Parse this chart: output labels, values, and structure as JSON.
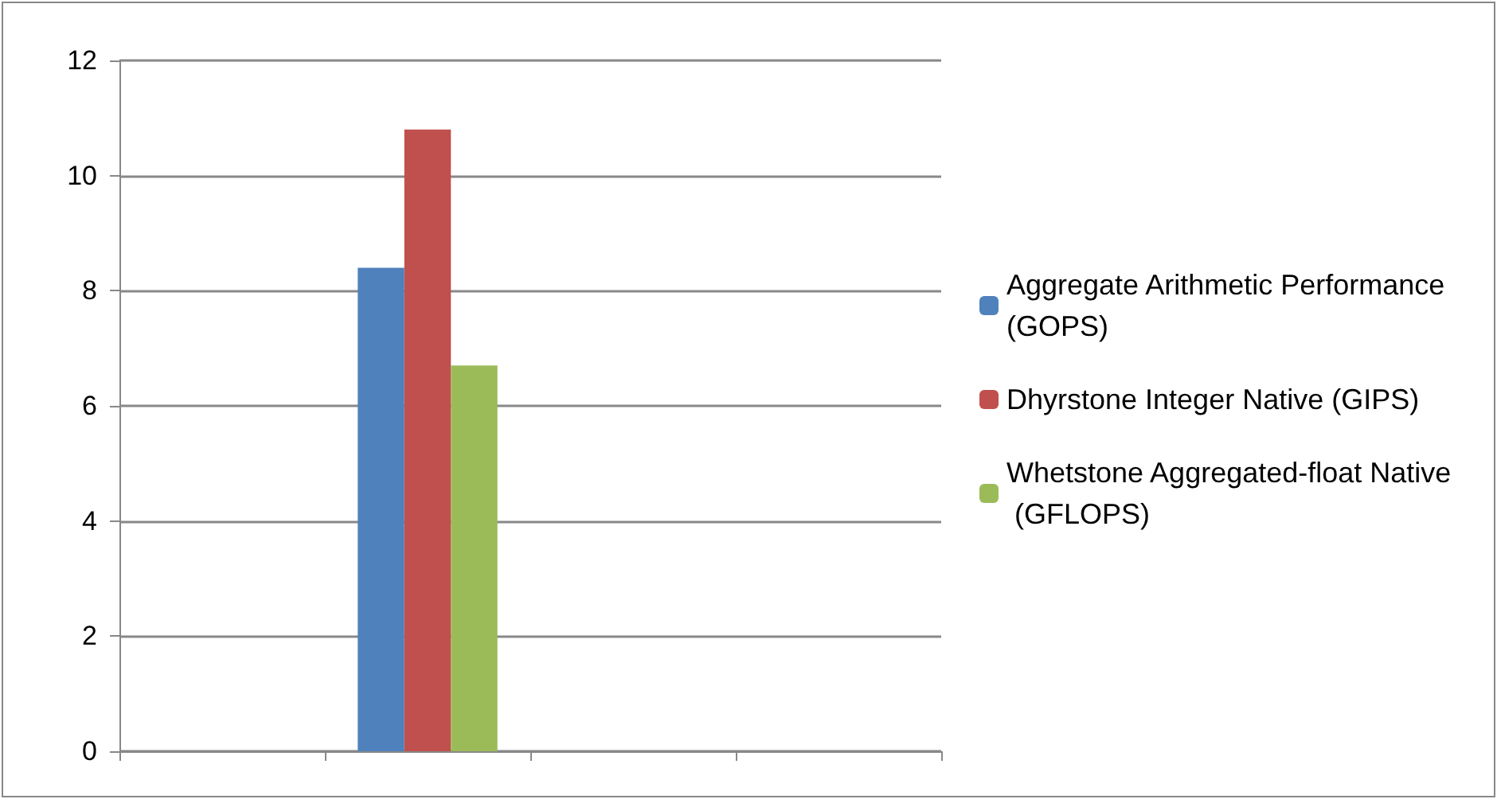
{
  "chart_data": {
    "type": "bar",
    "categories": [
      null,
      null,
      null,
      null
    ],
    "series": [
      {
        "name": "Aggregate Arithmetic Performance (GOPS)",
        "color": "#4f81bd",
        "values": [
          null,
          8.4,
          null,
          null
        ]
      },
      {
        "name": "Dhyrstone Integer Native (GIPS)",
        "color": "#c0504d",
        "values": [
          null,
          10.8,
          null,
          null
        ]
      },
      {
        "name": "Whetstone Aggregated-float Native  (GFLOPS)",
        "color": "#9bbb59",
        "values": [
          null,
          6.7,
          null,
          null
        ]
      }
    ],
    "ylim": [
      0,
      12
    ],
    "yticks": [
      0,
      2,
      4,
      6,
      8,
      10,
      12
    ],
    "grid": "y",
    "legend": "right"
  }
}
